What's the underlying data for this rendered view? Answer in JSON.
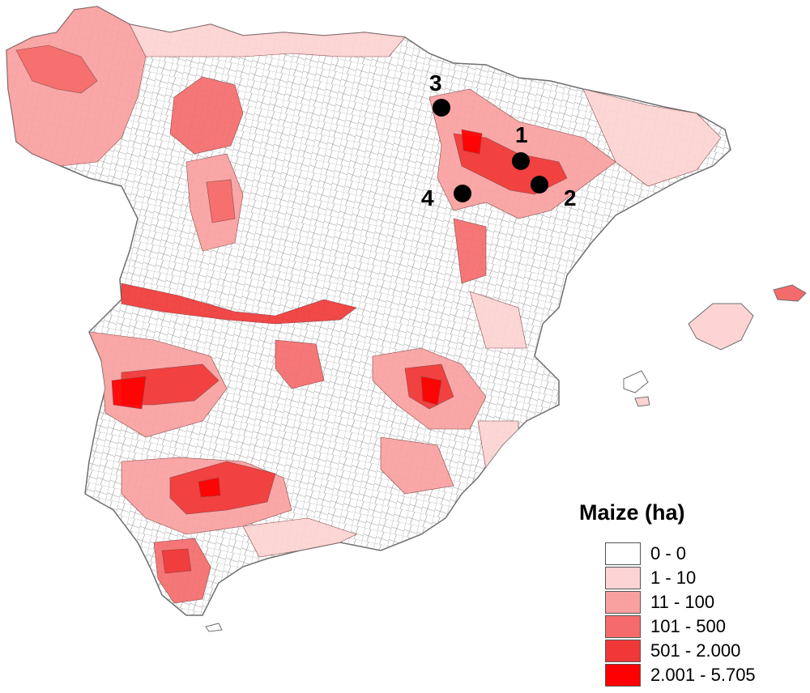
{
  "map": {
    "land_stroke": "#7a7a7a",
    "class_colors": [
      "#ffffff",
      "#fdd3d3",
      "#f9a0a0",
      "#f56b6b",
      "#f03838",
      "#ff0000"
    ],
    "marker_color": "#000000"
  },
  "legend": {
    "title": "Maize (ha)",
    "items": [
      {
        "label": "0 - 0",
        "color": "#ffffff"
      },
      {
        "label": "1 - 10",
        "color": "#fdd3d3"
      },
      {
        "label": "11 - 100",
        "color": "#f9a0a0"
      },
      {
        "label": "101 - 500",
        "color": "#f56b6b"
      },
      {
        "label": "501 - 2.000",
        "color": "#f03838"
      },
      {
        "label": "2.001 - 5.705",
        "color": "#ff0000"
      }
    ]
  },
  "sites": [
    {
      "label": "1"
    },
    {
      "label": "2"
    },
    {
      "label": "3"
    },
    {
      "label": "4"
    }
  ]
}
